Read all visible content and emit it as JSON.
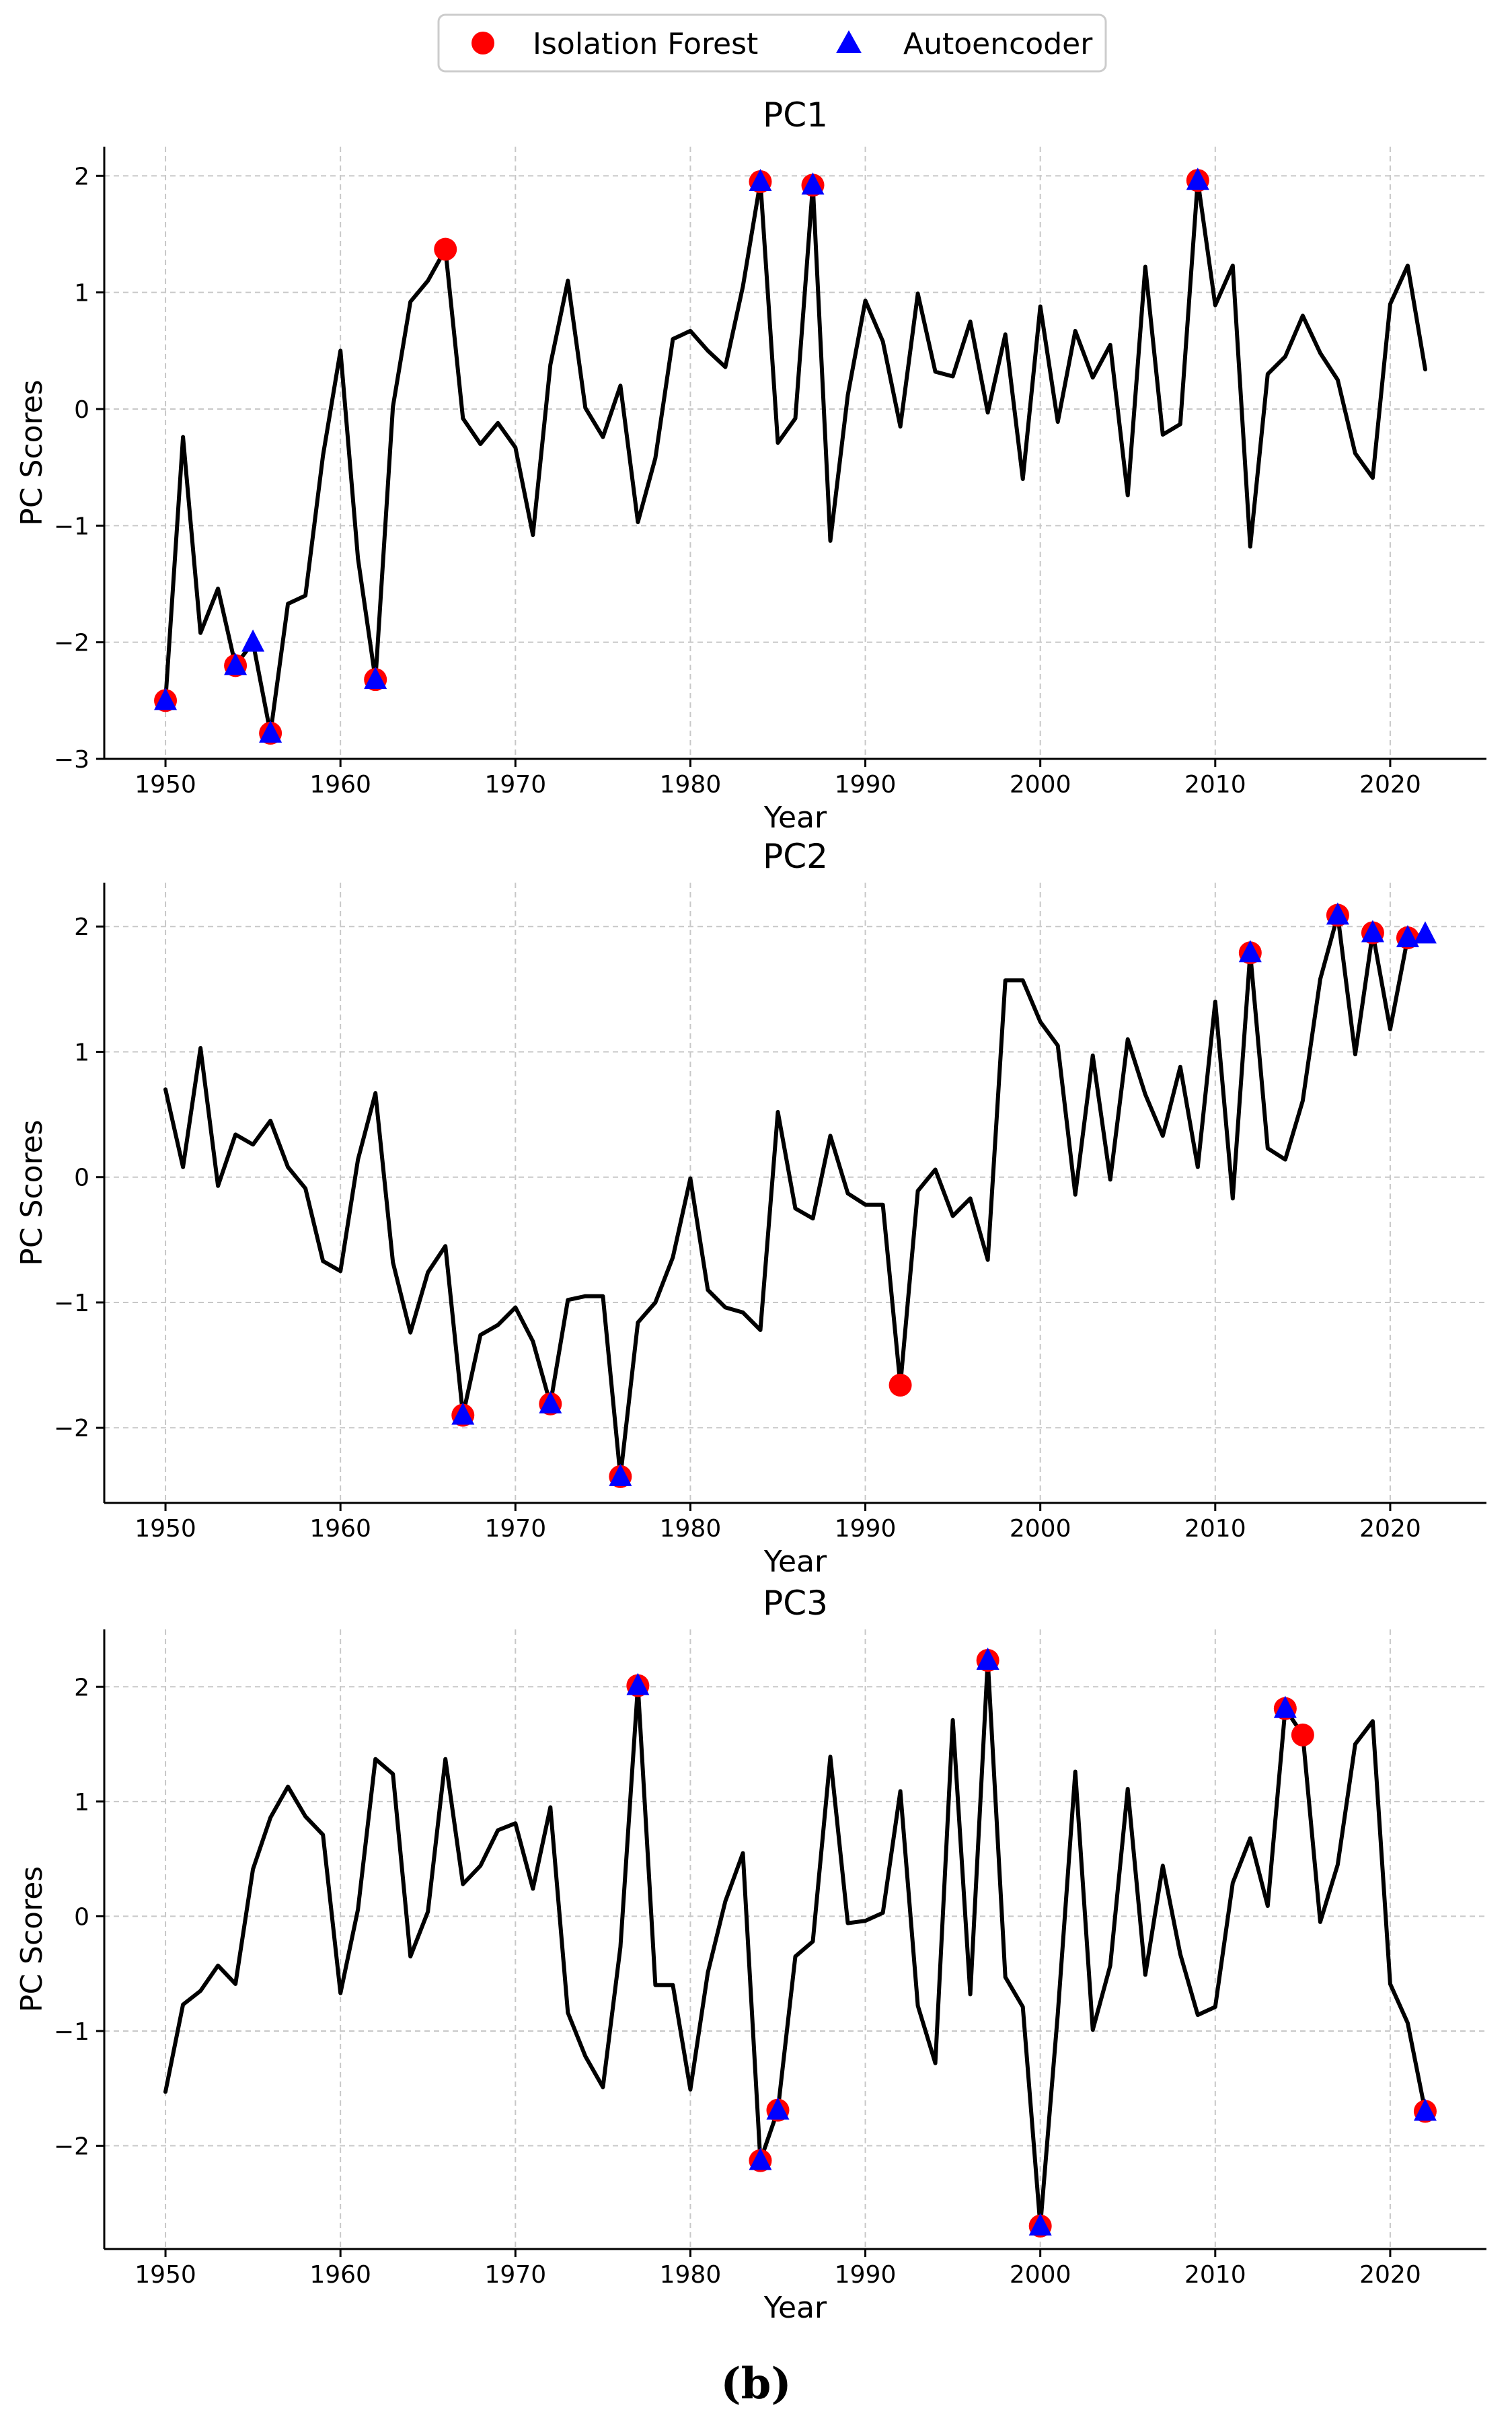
{
  "legend": {
    "entries": [
      {
        "label": "Isolation Forest",
        "marker": "circle",
        "color": "#ff0000"
      },
      {
        "label": "Autoencoder",
        "marker": "triangle",
        "color": "#0000ff"
      }
    ]
  },
  "caption": "(b)",
  "chart_data": [
    {
      "type": "line",
      "title": "PC1",
      "xlabel": "Year",
      "ylabel": "PC Scores",
      "xlim": [
        1946.5,
        2025.5
      ],
      "ylim": [
        -3.0,
        2.25
      ],
      "xticks": [
        1950,
        1960,
        1970,
        1980,
        1990,
        2000,
        2010,
        2020
      ],
      "yticks": [
        -3,
        -2,
        -1,
        0,
        1,
        2
      ],
      "ytick_labels": [
        "−3",
        "−2",
        "−1",
        "0",
        "1",
        "2"
      ],
      "grid": true,
      "line_color": "#000000",
      "series": [
        {
          "name": "PC1",
          "x": [
            1950,
            1951,
            1952,
            1953,
            1954,
            1955,
            1956,
            1957,
            1958,
            1959,
            1960,
            1961,
            1962,
            1963,
            1964,
            1965,
            1966,
            1967,
            1968,
            1969,
            1970,
            1971,
            1972,
            1973,
            1974,
            1975,
            1976,
            1977,
            1978,
            1979,
            1980,
            1981,
            1982,
            1983,
            1984,
            1985,
            1986,
            1987,
            1988,
            1989,
            1990,
            1991,
            1992,
            1993,
            1994,
            1995,
            1996,
            1997,
            1998,
            1999,
            2000,
            2001,
            2002,
            2003,
            2004,
            2005,
            2006,
            2007,
            2008,
            2009,
            2010,
            2011,
            2012,
            2013,
            2014,
            2015,
            2016,
            2017,
            2018,
            2019,
            2020,
            2021,
            2022
          ],
          "values": [
            -2.5,
            -0.24,
            -1.92,
            -1.54,
            -2.2,
            -2.0,
            -2.78,
            -1.67,
            -1.6,
            -0.4,
            0.5,
            -1.28,
            -2.32,
            0.02,
            0.92,
            1.1,
            1.37,
            -0.08,
            -0.3,
            -0.12,
            -0.33,
            -1.08,
            0.38,
            1.1,
            0.01,
            -0.24,
            0.2,
            -0.97,
            -0.42,
            0.6,
            0.67,
            0.5,
            0.36,
            1.05,
            1.95,
            -0.29,
            -0.08,
            1.92,
            -1.13,
            0.12,
            0.93,
            0.58,
            -0.15,
            0.99,
            0.32,
            0.28,
            0.75,
            -0.03,
            0.64,
            -0.6,
            0.88,
            -0.11,
            0.67,
            0.27,
            0.55,
            -0.74,
            1.22,
            -0.22,
            -0.13,
            1.96,
            0.89,
            1.23,
            -1.18,
            0.3,
            0.45,
            0.8,
            0.48,
            0.25,
            -0.38,
            -0.59,
            0.9,
            1.23,
            0.34
          ]
        }
      ],
      "anomalies": {
        "isolation_forest": [
          [
            1950,
            -2.5
          ],
          [
            1954,
            -2.2
          ],
          [
            1956,
            -2.78
          ],
          [
            1962,
            -2.32
          ],
          [
            1966,
            1.37
          ],
          [
            1984,
            1.95
          ],
          [
            1987,
            1.92
          ],
          [
            2009,
            1.96
          ]
        ],
        "autoencoder": [
          [
            1950,
            -2.5
          ],
          [
            1954,
            -2.2
          ],
          [
            1955,
            -2.0
          ],
          [
            1956,
            -2.78
          ],
          [
            1962,
            -2.32
          ],
          [
            1984,
            1.95
          ],
          [
            1987,
            1.92
          ],
          [
            2009,
            1.96
          ]
        ]
      }
    },
    {
      "type": "line",
      "title": "PC2",
      "xlabel": "Year",
      "ylabel": "PC Scores",
      "xlim": [
        1946.5,
        2025.5
      ],
      "ylim": [
        -2.6,
        2.35
      ],
      "xticks": [
        1950,
        1960,
        1970,
        1980,
        1990,
        2000,
        2010,
        2020
      ],
      "yticks": [
        -2,
        -1,
        0,
        1,
        2
      ],
      "ytick_labels": [
        "−2",
        "−1",
        "0",
        "1",
        "2"
      ],
      "grid": true,
      "line_color": "#000000",
      "series": [
        {
          "name": "PC2",
          "x": [
            1950,
            1951,
            1952,
            1953,
            1954,
            1955,
            1956,
            1957,
            1958,
            1959,
            1960,
            1961,
            1962,
            1963,
            1964,
            1965,
            1966,
            1967,
            1968,
            1969,
            1970,
            1971,
            1972,
            1973,
            1974,
            1975,
            1976,
            1977,
            1978,
            1979,
            1980,
            1981,
            1982,
            1983,
            1984,
            1985,
            1986,
            1987,
            1988,
            1989,
            1990,
            1991,
            1992,
            1993,
            1994,
            1995,
            1996,
            1997,
            1998,
            1999,
            2000,
            2001,
            2002,
            2003,
            2004,
            2005,
            2006,
            2007,
            2008,
            2009,
            2010,
            2011,
            2012,
            2013,
            2014,
            2015,
            2016,
            2017,
            2018,
            2019,
            2020,
            2021,
            2022
          ],
          "values": [
            0.7,
            0.08,
            1.03,
            -0.07,
            0.34,
            0.26,
            0.45,
            0.08,
            -0.09,
            -0.67,
            -0.75,
            0.14,
            0.67,
            -0.68,
            -1.24,
            -0.76,
            -0.55,
            -1.9,
            -1.26,
            -1.18,
            -1.04,
            -1.31,
            -1.81,
            -0.98,
            -0.95,
            -0.95,
            -2.39,
            -1.16,
            -1.0,
            -0.64,
            -0.01,
            -0.9,
            -1.04,
            -1.08,
            -1.22,
            0.52,
            -0.25,
            -0.33,
            0.33,
            -0.13,
            -0.22,
            -0.22,
            -1.66,
            -0.11,
            0.06,
            -0.31,
            -0.17,
            -0.66,
            1.57,
            1.57,
            1.24,
            1.05,
            -0.14,
            0.97,
            -0.02,
            1.1,
            0.66,
            0.33,
            0.88,
            0.08,
            1.4,
            -0.17,
            1.79,
            0.23,
            0.14,
            0.61,
            1.58,
            2.09,
            0.98,
            1.95,
            1.18,
            1.91,
            1.94
          ]
        }
      ],
      "anomalies": {
        "isolation_forest": [
          [
            1967,
            -1.9
          ],
          [
            1972,
            -1.81
          ],
          [
            1976,
            -2.39
          ],
          [
            1992,
            -1.66
          ],
          [
            2012,
            1.79
          ],
          [
            2017,
            2.09
          ],
          [
            2019,
            1.95
          ],
          [
            2021,
            1.91
          ]
        ],
        "autoencoder": [
          [
            1967,
            -1.9
          ],
          [
            1972,
            -1.81
          ],
          [
            1976,
            -2.39
          ],
          [
            2012,
            1.79
          ],
          [
            2017,
            2.09
          ],
          [
            2019,
            1.95
          ],
          [
            2021,
            1.91
          ],
          [
            2022,
            1.94
          ]
        ]
      }
    },
    {
      "type": "line",
      "title": "PC3",
      "xlabel": "Year",
      "ylabel": "PC Scores",
      "xlim": [
        1946.5,
        2025.5
      ],
      "ylim": [
        -2.9,
        2.5
      ],
      "xticks": [
        1950,
        1960,
        1970,
        1980,
        1990,
        2000,
        2010,
        2020
      ],
      "yticks": [
        -2,
        -1,
        0,
        1,
        2
      ],
      "ytick_labels": [
        "−2",
        "−1",
        "0",
        "1",
        "2"
      ],
      "grid": true,
      "line_color": "#000000",
      "series": [
        {
          "name": "PC3",
          "x": [
            1950,
            1951,
            1952,
            1953,
            1954,
            1955,
            1956,
            1957,
            1958,
            1959,
            1960,
            1961,
            1962,
            1963,
            1964,
            1965,
            1966,
            1967,
            1968,
            1969,
            1970,
            1971,
            1972,
            1973,
            1974,
            1975,
            1976,
            1977,
            1978,
            1979,
            1980,
            1981,
            1982,
            1983,
            1984,
            1985,
            1986,
            1987,
            1988,
            1989,
            1990,
            1991,
            1992,
            1993,
            1994,
            1995,
            1996,
            1997,
            1998,
            1999,
            2000,
            2001,
            2002,
            2003,
            2004,
            2005,
            2006,
            2007,
            2008,
            2009,
            2010,
            2011,
            2012,
            2013,
            2014,
            2015,
            2016,
            2017,
            2018,
            2019,
            2020,
            2021,
            2022
          ],
          "values": [
            -1.53,
            -0.77,
            -0.65,
            -0.43,
            -0.59,
            0.41,
            0.86,
            1.13,
            0.87,
            0.71,
            -0.67,
            0.06,
            1.37,
            1.24,
            -0.35,
            0.04,
            1.37,
            0.28,
            0.44,
            0.75,
            0.81,
            0.24,
            0.95,
            -0.84,
            -1.22,
            -1.49,
            -0.27,
            2.01,
            -0.6,
            -0.6,
            -1.51,
            -0.49,
            0.13,
            0.55,
            -2.13,
            -1.69,
            -0.35,
            -0.22,
            1.39,
            -0.06,
            -0.04,
            0.03,
            1.09,
            -0.78,
            -1.28,
            1.71,
            -0.68,
            2.23,
            -0.53,
            -0.79,
            -2.7,
            -0.85,
            1.26,
            -0.99,
            -0.43,
            1.11,
            -0.51,
            0.44,
            -0.33,
            -0.86,
            -0.79,
            0.29,
            0.68,
            0.09,
            1.81,
            1.58,
            -0.05,
            0.45,
            1.5,
            1.7,
            -0.59,
            -0.93,
            -1.7
          ]
        }
      ],
      "anomalies": {
        "isolation_forest": [
          [
            1977,
            2.01
          ],
          [
            1984,
            -2.13
          ],
          [
            1985,
            -1.69
          ],
          [
            1997,
            2.23
          ],
          [
            2000,
            -2.7
          ],
          [
            2014,
            1.81
          ],
          [
            2015,
            1.58
          ],
          [
            2022,
            -1.7
          ]
        ],
        "autoencoder": [
          [
            1977,
            2.01
          ],
          [
            1984,
            -2.13
          ],
          [
            1985,
            -1.69
          ],
          [
            1997,
            2.23
          ],
          [
            2000,
            -2.7
          ],
          [
            2014,
            1.81
          ],
          [
            2022,
            -1.7
          ]
        ]
      }
    }
  ]
}
